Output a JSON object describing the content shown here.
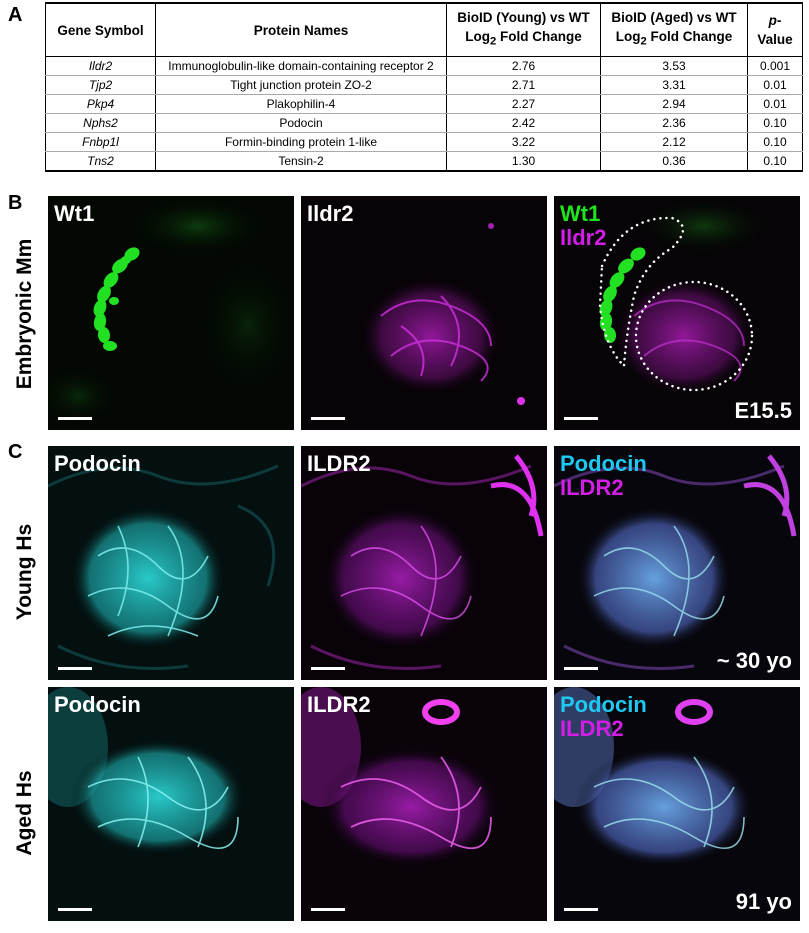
{
  "panels": {
    "a": "A",
    "b": "B",
    "c": "C"
  },
  "table": {
    "headers": {
      "gene": "Gene Symbol",
      "protein": "Protein Names",
      "young_line1": "BioID (Young) vs WT",
      "young_line2_pre": "Log",
      "young_sub": "2",
      "young_line2_post": " Fold Change",
      "aged_line1": "BioID (Aged) vs WT",
      "aged_line2_pre": "Log",
      "aged_sub": "2",
      "aged_line2_post": " Fold Change",
      "pvalue_italic": "p",
      "pvalue_rest": "-Value"
    },
    "rows": [
      {
        "gene": "Ildr2",
        "protein": "Immunoglobulin-like domain-containing receptor 2",
        "young": "2.76",
        "aged": "3.53",
        "p": "0.001"
      },
      {
        "gene": "Tjp2",
        "protein": "Tight junction protein ZO-2",
        "young": "2.71",
        "aged": "3.31",
        "p": "0.01"
      },
      {
        "gene": "Pkp4",
        "protein": "Plakophilin-4",
        "young": "2.27",
        "aged": "2.94",
        "p": "0.01"
      },
      {
        "gene": "Nphs2",
        "protein": "Podocin",
        "young": "2.42",
        "aged": "2.36",
        "p": "0.10"
      },
      {
        "gene": "Fnbp1l",
        "protein": "Formin-binding protein 1-like",
        "young": "3.22",
        "aged": "2.12",
        "p": "0.10"
      },
      {
        "gene": "Tns2",
        "protein": "Tensin-2",
        "young": "1.30",
        "aged": "0.36",
        "p": "0.10"
      }
    ]
  },
  "rows": {
    "embryonic": {
      "label": "Embryonic Mm",
      "tiles": {
        "t1": "Wt1",
        "t2": "Ildr2",
        "t3a": "Wt1",
        "t3b": "Ildr2"
      },
      "age": "E15.5"
    },
    "young": {
      "label": "Young Hs",
      "tiles": {
        "t1": "Podocin",
        "t2": "ILDR2",
        "t3a": "Podocin",
        "t3b": "ILDR2"
      },
      "age": "~ 30 yo"
    },
    "aged": {
      "label": "Aged Hs",
      "tiles": {
        "t1": "Podocin",
        "t2": "ILDR2",
        "t3a": "Podocin",
        "t3b": "ILDR2"
      },
      "age": "91 yo"
    }
  },
  "colors": {
    "wt1": "#1ee61e",
    "ildr2": "#d21ee6",
    "podocin_label": "#ffffff",
    "podocin_merge": "#1ec8f0",
    "podocin_signal": "#2fd8d8",
    "background": "#050505"
  }
}
